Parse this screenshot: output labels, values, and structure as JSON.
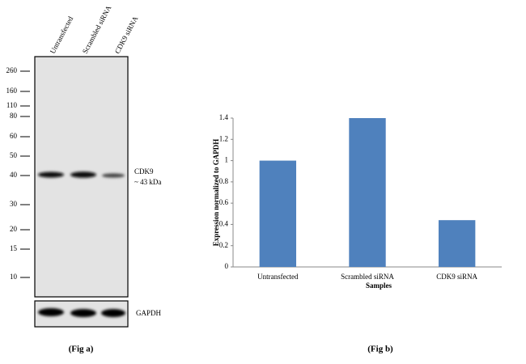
{
  "blot": {
    "lanes": [
      "Untransfected",
      "Scrambled siRNA",
      "CDK9 siRNA"
    ],
    "markers": [
      "260",
      "160",
      "110",
      "80",
      "60",
      "50",
      "40",
      "30",
      "20",
      "15",
      "10"
    ],
    "band_label": "CDK9",
    "band_size": "~ 43 kDa",
    "loading_control": "GAPDH",
    "caption": "(Fig a)"
  },
  "chart_data": {
    "type": "bar",
    "caption": "(Fig b)",
    "x_label": "Samples",
    "y_label": "Expression  normalized to GAPDH",
    "categories": [
      "Untransfected",
      "Scrambled siRNA",
      "CDK9 siRNA"
    ],
    "values": [
      1,
      1.4,
      0.44
    ],
    "color": "#4f81bd",
    "ylim": [
      0,
      1.4
    ],
    "yticks": [
      0,
      0.2,
      0.4,
      0.6,
      0.8,
      1,
      1.2,
      1.4
    ],
    "grid": false
  }
}
